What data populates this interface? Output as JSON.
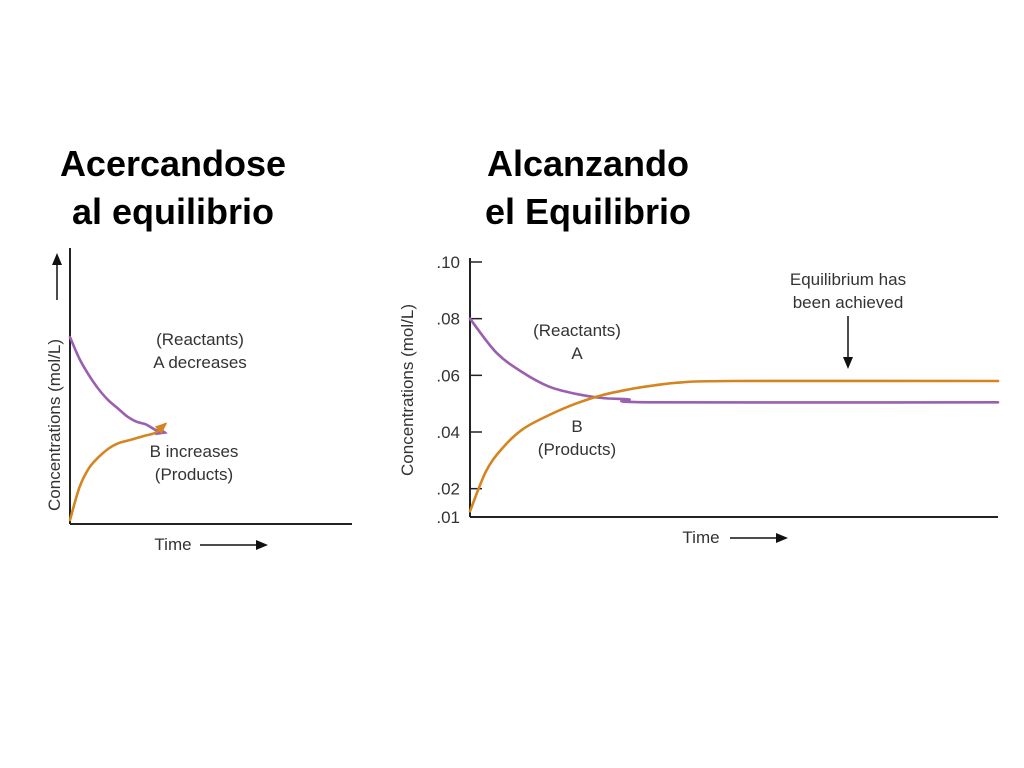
{
  "headings": {
    "left": {
      "line1": "Acercandose",
      "line2": "al equilibrio"
    },
    "right": {
      "line1": "Alcanzando",
      "line2": "el Equilibrio"
    }
  },
  "colors": {
    "reactant": "#9b5fb0",
    "product": "#d4851f",
    "axis": "#222222",
    "text": "#333333"
  },
  "chart_data": [
    {
      "type": "line",
      "title": "",
      "xlabel": "Time",
      "ylabel": "Concentrations (mol/L)",
      "axis_ticks": false,
      "series": [
        {
          "name": "A",
          "color": "#9b5fb0",
          "x": [
            0,
            0.1,
            0.2,
            0.3,
            0.4,
            0.5,
            0.6,
            0.7,
            0.8,
            0.9,
            1.0
          ],
          "y": [
            0.67,
            0.59,
            0.53,
            0.48,
            0.44,
            0.41,
            0.38,
            0.36,
            0.35,
            0.33,
            0.32
          ]
        },
        {
          "name": "B",
          "color": "#d4851f",
          "x": [
            0,
            0.1,
            0.2,
            0.3,
            0.4,
            0.5,
            0.6,
            0.7,
            0.8,
            0.9,
            1.0
          ],
          "y": [
            0.0,
            0.12,
            0.19,
            0.23,
            0.26,
            0.28,
            0.29,
            0.3,
            0.31,
            0.32,
            0.35
          ]
        }
      ],
      "annotations": [
        {
          "lines": [
            "(Reactants)",
            "A decreases"
          ],
          "x": 0.46,
          "y": 0.62
        },
        {
          "lines": [
            "B increases",
            "(Products)"
          ],
          "x": 0.46,
          "y": 0.22
        }
      ]
    },
    {
      "type": "line",
      "title": "",
      "xlabel": "Time",
      "ylabel": "Concentrations (mol/L)",
      "ylim": [
        0.01,
        0.1
      ],
      "yticks": [
        0.1,
        0.08,
        0.06,
        0.04,
        0.02,
        0.01
      ],
      "ytick_labels": [
        ".10",
        ".08",
        ".06",
        ".04",
        ".02",
        ".01"
      ],
      "series": [
        {
          "name": "A",
          "color": "#9b5fb0",
          "x": [
            0,
            0.05,
            0.1,
            0.15,
            0.2,
            0.25,
            0.3,
            0.35,
            1.0
          ],
          "y": [
            0.08,
            0.068,
            0.061,
            0.056,
            0.0535,
            0.052,
            0.0515,
            0.0505,
            0.0505
          ]
        },
        {
          "name": "B",
          "color": "#d4851f",
          "x": [
            0,
            0.03,
            0.06,
            0.1,
            0.15,
            0.2,
            0.25,
            0.3,
            0.35,
            0.4,
            0.5,
            1.0
          ],
          "y": [
            0.012,
            0.026,
            0.034,
            0.041,
            0.046,
            0.05,
            0.053,
            0.055,
            0.0565,
            0.0575,
            0.058,
            0.058
          ]
        }
      ],
      "annotations": [
        {
          "lines": [
            "(Reactants)",
            "A"
          ],
          "x": 0.18,
          "y": 0.075
        },
        {
          "lines": [
            "B",
            "(Products)"
          ],
          "x": 0.18,
          "y": 0.036
        },
        {
          "lines": [
            "Equilibrium has",
            "been achieved"
          ],
          "x": 0.72,
          "y": 0.089
        }
      ]
    }
  ]
}
